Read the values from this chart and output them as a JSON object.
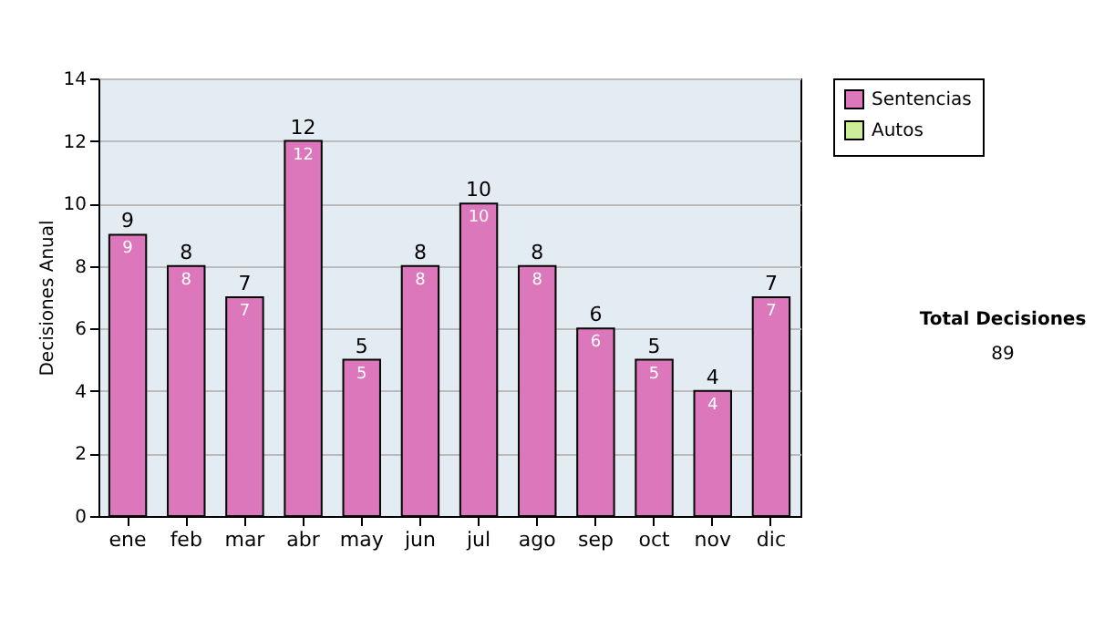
{
  "chart_data": {
    "type": "bar",
    "ylabel": "Decisiones Anual",
    "categories": [
      "ene",
      "feb",
      "mar",
      "abr",
      "may",
      "jun",
      "jul",
      "ago",
      "sep",
      "oct",
      "nov",
      "dic"
    ],
    "series": [
      {
        "name": "Sentencias",
        "color": "#dd77bb",
        "values": [
          9,
          8,
          7,
          12,
          5,
          8,
          10,
          8,
          6,
          5,
          4,
          7
        ]
      },
      {
        "name": "Autos",
        "color": "#ccee99",
        "values": [
          null,
          null,
          null,
          null,
          null,
          null,
          null,
          null,
          null,
          null,
          null,
          null
        ]
      }
    ],
    "ylim": [
      0,
      14
    ],
    "yticks": [
      0,
      2,
      4,
      6,
      8,
      10,
      12,
      14
    ],
    "grid": "y",
    "legend": "right",
    "data_labels": true,
    "annotations": [
      "Total Decisiones",
      "89",
      {
        "text": "9",
        "x": "ene",
        "y": 9
      },
      {
        "text": "8",
        "x": "feb",
        "y": 8
      },
      {
        "text": "7",
        "x": "mar",
        "y": 7
      },
      {
        "text": "12",
        "x": "abr",
        "y": 12
      },
      {
        "text": "5",
        "x": "may",
        "y": 5
      },
      {
        "text": "8",
        "x": "jun",
        "y": 8
      },
      {
        "text": "10",
        "x": "jul",
        "y": 10
      },
      {
        "text": "8",
        "x": "ago",
        "y": 8
      },
      {
        "text": "6",
        "x": "sep",
        "y": 6
      },
      {
        "text": "5",
        "x": "oct",
        "y": 5
      },
      {
        "text": "4",
        "x": "nov",
        "y": 4
      },
      {
        "text": "7",
        "x": "dic",
        "y": 7
      }
    ]
  }
}
